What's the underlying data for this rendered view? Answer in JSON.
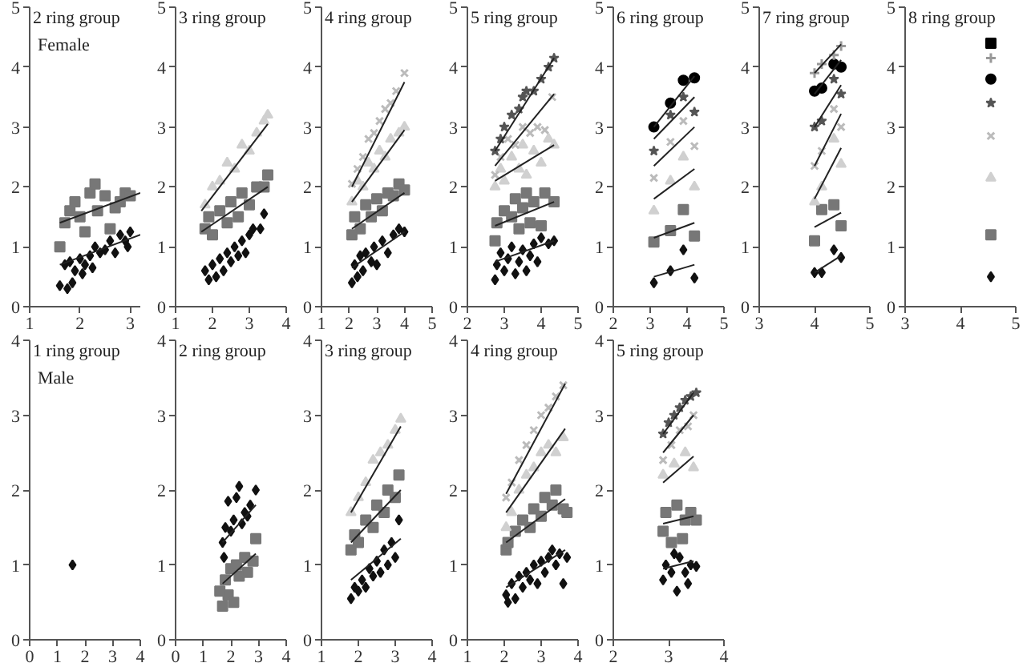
{
  "chart_data": [
    {
      "type": "scatter",
      "title": "2 ring group",
      "annotations": [
        "Female"
      ],
      "xlim": [
        1,
        3.2
      ],
      "ylim": [
        0,
        5
      ],
      "xticks": [
        1,
        2,
        3
      ],
      "yticks": [
        0,
        1,
        2,
        3,
        4,
        5
      ],
      "series": [
        {
          "type": "scatter",
          "marker": "diamond",
          "color": "#111111",
          "x": [
            1.6,
            1.7,
            1.75,
            1.8,
            1.85,
            1.9,
            2.0,
            2.05,
            2.1,
            2.2,
            2.25,
            2.3,
            2.4,
            2.5,
            2.6,
            2.7,
            2.8,
            2.9,
            2.95,
            3.0
          ],
          "values": [
            0.35,
            0.7,
            0.3,
            0.75,
            0.4,
            0.6,
            0.8,
            0.55,
            0.7,
            0.85,
            0.65,
            1.0,
            0.9,
            0.95,
            1.1,
            0.9,
            1.2,
            1.1,
            1.0,
            1.25
          ]
        },
        {
          "type": "scatter",
          "marker": "square",
          "color": "#777777",
          "x": [
            1.6,
            1.7,
            1.8,
            1.9,
            2.0,
            2.1,
            2.2,
            2.3,
            2.35,
            2.5,
            2.6,
            2.7,
            2.8,
            2.9,
            3.0
          ],
          "values": [
            1.0,
            1.4,
            1.6,
            1.75,
            1.5,
            1.25,
            1.9,
            2.05,
            1.6,
            1.85,
            1.3,
            1.65,
            1.75,
            1.9,
            1.85
          ]
        },
        {
          "type": "line",
          "color": "#222222",
          "x": [
            1.6,
            3.2
          ],
          "values": [
            1.4,
            1.9
          ]
        },
        {
          "type": "line",
          "color": "#222222",
          "x": [
            1.6,
            3.2
          ],
          "values": [
            0.7,
            1.2
          ]
        }
      ]
    },
    {
      "type": "scatter",
      "title": "3 ring group",
      "xlim": [
        1,
        4
      ],
      "ylim": [
        0,
        5
      ],
      "xticks": [
        1,
        2,
        3,
        4
      ],
      "yticks": [
        0,
        1,
        2,
        3,
        4,
        5
      ],
      "series": [
        {
          "type": "scatter",
          "marker": "diamond",
          "color": "#111111",
          "x": [
            1.8,
            1.9,
            2.0,
            2.1,
            2.2,
            2.3,
            2.4,
            2.5,
            2.6,
            2.7,
            2.8,
            2.9,
            3.0,
            3.1,
            3.3,
            3.4
          ],
          "values": [
            0.6,
            0.45,
            0.7,
            0.5,
            0.8,
            0.6,
            0.9,
            0.75,
            1.0,
            0.85,
            1.1,
            0.9,
            1.2,
            1.3,
            1.3,
            1.55
          ]
        },
        {
          "type": "scatter",
          "marker": "square",
          "color": "#777777",
          "x": [
            1.8,
            1.9,
            2.0,
            2.2,
            2.4,
            2.5,
            2.7,
            2.8,
            3.0,
            3.2,
            3.4,
            3.5
          ],
          "values": [
            1.3,
            1.5,
            1.2,
            1.6,
            1.4,
            1.75,
            1.5,
            1.9,
            1.7,
            2.0,
            2.0,
            2.2
          ]
        },
        {
          "type": "scatter",
          "marker": "triangle",
          "color": "#d0d0d0",
          "x": [
            1.8,
            2.0,
            2.2,
            2.4,
            2.6,
            2.8,
            3.0,
            3.2,
            3.4,
            3.5
          ],
          "values": [
            1.7,
            2.0,
            2.1,
            2.4,
            2.3,
            2.7,
            2.6,
            2.9,
            3.1,
            3.2
          ]
        },
        {
          "type": "line",
          "color": "#222222",
          "x": [
            1.7,
            3.5
          ],
          "values": [
            1.6,
            3.05
          ]
        },
        {
          "type": "line",
          "color": "#222222",
          "x": [
            1.7,
            3.5
          ],
          "values": [
            1.25,
            2.0
          ]
        }
      ]
    },
    {
      "type": "scatter",
      "title": "4 ring group",
      "xlim": [
        1,
        5
      ],
      "ylim": [
        0,
        5
      ],
      "xticks": [
        1,
        2,
        3,
        4,
        5
      ],
      "yticks": [
        0,
        1,
        2,
        3,
        4,
        5
      ],
      "series": [
        {
          "type": "scatter",
          "marker": "diamond",
          "color": "#111111",
          "x": [
            2.1,
            2.2,
            2.3,
            2.4,
            2.5,
            2.6,
            2.8,
            2.9,
            3.0,
            3.2,
            3.4,
            3.6,
            3.8,
            4.0
          ],
          "values": [
            0.4,
            0.7,
            0.5,
            0.85,
            0.6,
            0.9,
            0.75,
            1.0,
            0.7,
            1.1,
            0.9,
            1.2,
            1.3,
            1.25
          ]
        },
        {
          "type": "scatter",
          "marker": "square",
          "color": "#777777",
          "x": [
            2.1,
            2.2,
            2.4,
            2.6,
            2.8,
            3.0,
            3.2,
            3.4,
            3.6,
            3.8,
            4.0
          ],
          "values": [
            1.2,
            1.5,
            1.3,
            1.7,
            1.5,
            1.8,
            1.6,
            1.9,
            1.85,
            2.05,
            1.95
          ]
        },
        {
          "type": "scatter",
          "marker": "triangle",
          "color": "#d0d0d0",
          "x": [
            2.1,
            2.3,
            2.5,
            2.7,
            2.9,
            3.1,
            3.3,
            3.5,
            3.8,
            4.0
          ],
          "values": [
            1.75,
            2.1,
            2.0,
            2.4,
            2.3,
            2.6,
            2.5,
            2.8,
            2.9,
            3.0
          ]
        },
        {
          "type": "scatter",
          "marker": "cross",
          "color": "#bbbbbb",
          "x": [
            2.1,
            2.3,
            2.5,
            2.7,
            2.9,
            3.1,
            3.3,
            3.5,
            3.7,
            4.0
          ],
          "values": [
            2.05,
            2.3,
            2.5,
            2.8,
            2.9,
            3.1,
            3.3,
            3.4,
            3.6,
            3.9
          ]
        },
        {
          "type": "line",
          "color": "#222222",
          "x": [
            2.1,
            4.0
          ],
          "values": [
            2.0,
            3.75
          ]
        },
        {
          "type": "line",
          "color": "#222222",
          "x": [
            2.1,
            4.0
          ],
          "values": [
            1.75,
            2.95
          ]
        },
        {
          "type": "line",
          "color": "#222222",
          "x": [
            2.1,
            4.0
          ],
          "values": [
            1.3,
            1.9
          ]
        },
        {
          "type": "line",
          "color": "#222222",
          "x": [
            2.1,
            4.0
          ],
          "values": [
            0.65,
            1.25
          ]
        }
      ]
    },
    {
      "type": "scatter",
      "title": "5 ring group",
      "xlim": [
        2,
        5
      ],
      "ylim": [
        0,
        5
      ],
      "xticks": [
        2,
        3,
        4,
        5
      ],
      "yticks": [
        0,
        1,
        2,
        3,
        4,
        5
      ],
      "series": [
        {
          "type": "scatter",
          "marker": "diamond",
          "color": "#111111",
          "x": [
            2.75,
            2.8,
            2.9,
            3.0,
            3.1,
            3.2,
            3.3,
            3.4,
            3.5,
            3.6,
            3.7,
            3.8,
            3.9,
            4.0,
            4.2,
            4.35
          ],
          "values": [
            0.45,
            0.7,
            0.9,
            0.6,
            0.8,
            1.0,
            0.55,
            0.75,
            0.95,
            0.6,
            0.85,
            1.05,
            0.75,
            1.15,
            1.05,
            1.1
          ]
        },
        {
          "type": "scatter",
          "marker": "square",
          "color": "#777777",
          "x": [
            2.75,
            2.8,
            3.0,
            3.2,
            3.3,
            3.4,
            3.5,
            3.6,
            3.7,
            3.8,
            4.0,
            4.1,
            4.35
          ],
          "values": [
            1.1,
            1.4,
            1.6,
            1.5,
            1.8,
            1.3,
            1.65,
            1.9,
            1.4,
            1.75,
            1.35,
            1.9,
            1.75
          ]
        },
        {
          "type": "scatter",
          "marker": "triangle",
          "color": "#d0d0d0",
          "x": [
            2.75,
            2.9,
            3.0,
            3.2,
            3.4,
            3.5,
            3.6,
            3.8,
            4.0,
            4.2,
            4.35
          ],
          "values": [
            2.0,
            2.3,
            2.1,
            2.5,
            2.3,
            2.7,
            2.2,
            2.6,
            2.4,
            2.8,
            2.7
          ]
        },
        {
          "type": "scatter",
          "marker": "cross",
          "color": "#bbbbbb",
          "x": [
            2.75,
            2.9,
            3.1,
            3.3,
            3.5,
            3.7,
            3.9,
            4.1,
            4.3
          ],
          "values": [
            2.2,
            2.5,
            2.8,
            2.7,
            3.0,
            2.9,
            3.0,
            2.95,
            3.5
          ]
        },
        {
          "type": "scatter",
          "marker": "star",
          "color": "#555555",
          "x": [
            2.75,
            2.9,
            3.0,
            3.2,
            3.4,
            3.5,
            3.6,
            3.8,
            4.0,
            4.2,
            4.35
          ],
          "values": [
            2.6,
            2.8,
            3.0,
            3.2,
            3.3,
            3.5,
            3.6,
            3.6,
            3.8,
            4.0,
            4.15
          ]
        },
        {
          "type": "line",
          "color": "#222222",
          "x": [
            2.75,
            4.35
          ],
          "values": [
            2.6,
            4.15
          ]
        },
        {
          "type": "line",
          "color": "#222222",
          "x": [
            2.75,
            4.35
          ],
          "values": [
            2.35,
            3.55
          ]
        },
        {
          "type": "line",
          "color": "#222222",
          "x": [
            2.75,
            4.35
          ],
          "values": [
            2.1,
            2.7
          ]
        },
        {
          "type": "line",
          "color": "#222222",
          "x": [
            2.75,
            4.35
          ],
          "values": [
            1.35,
            1.75
          ]
        },
        {
          "type": "line",
          "color": "#222222",
          "x": [
            2.75,
            4.35
          ],
          "values": [
            0.75,
            1.1
          ]
        }
      ]
    },
    {
      "type": "scatter",
      "title": "6 ring group",
      "xlim": [
        2,
        5
      ],
      "ylim": [
        0,
        5
      ],
      "xticks": [
        2,
        3,
        4,
        5
      ],
      "yticks": [
        0,
        1,
        2,
        3,
        4,
        5
      ],
      "series": [
        {
          "type": "scatter",
          "marker": "diamond",
          "color": "#111111",
          "x": [
            3.1,
            3.55,
            3.9,
            4.2
          ],
          "values": [
            0.4,
            0.6,
            0.95,
            0.48
          ]
        },
        {
          "type": "scatter",
          "marker": "square",
          "color": "#777777",
          "x": [
            3.1,
            3.55,
            3.9,
            4.2
          ],
          "values": [
            1.08,
            1.27,
            1.62,
            1.18
          ]
        },
        {
          "type": "scatter",
          "marker": "triangle",
          "color": "#d0d0d0",
          "x": [
            3.1,
            3.55,
            3.9,
            4.2
          ],
          "values": [
            1.6,
            2.1,
            2.5,
            2.0
          ]
        },
        {
          "type": "scatter",
          "marker": "cross",
          "color": "#bbbbbb",
          "x": [
            3.1,
            3.55,
            3.9,
            4.2
          ],
          "values": [
            2.15,
            2.75,
            3.1,
            2.68
          ]
        },
        {
          "type": "scatter",
          "marker": "star",
          "color": "#555555",
          "x": [
            3.1,
            3.55,
            3.9,
            4.2
          ],
          "values": [
            2.6,
            3.2,
            3.5,
            3.25
          ]
        },
        {
          "type": "scatter",
          "marker": "circle",
          "color": "#000000",
          "x": [
            3.1,
            3.55,
            3.9,
            4.2
          ],
          "values": [
            3.0,
            3.4,
            3.78,
            3.82
          ]
        },
        {
          "type": "line",
          "color": "#222222",
          "x": [
            3.1,
            4.2
          ],
          "values": [
            3.0,
            3.85
          ]
        },
        {
          "type": "line",
          "color": "#222222",
          "x": [
            3.1,
            4.2
          ],
          "values": [
            2.8,
            3.5
          ]
        },
        {
          "type": "line",
          "color": "#222222",
          "x": [
            3.1,
            4.2
          ],
          "values": [
            2.35,
            3.0
          ]
        },
        {
          "type": "line",
          "color": "#222222",
          "x": [
            3.1,
            4.2
          ],
          "values": [
            1.8,
            2.3
          ]
        },
        {
          "type": "line",
          "color": "#222222",
          "x": [
            3.1,
            4.2
          ],
          "values": [
            1.15,
            1.4
          ]
        },
        {
          "type": "line",
          "color": "#222222",
          "x": [
            3.1,
            4.2
          ],
          "values": [
            0.5,
            0.7
          ]
        }
      ]
    },
    {
      "type": "scatter",
      "title": "7 ring group",
      "xlim": [
        3,
        5
      ],
      "ylim": [
        0,
        5
      ],
      "xticks": [
        3,
        4,
        5
      ],
      "yticks": [
        0,
        1,
        2,
        3,
        4,
        5
      ],
      "series": [
        {
          "type": "scatter",
          "marker": "diamond",
          "color": "#111111",
          "x": [
            4.0,
            4.13,
            4.35,
            4.48
          ],
          "values": [
            0.57,
            0.57,
            0.95,
            0.82
          ]
        },
        {
          "type": "scatter",
          "marker": "square",
          "color": "#777777",
          "x": [
            4.0,
            4.13,
            4.35,
            4.48
          ],
          "values": [
            1.1,
            1.62,
            1.7,
            1.35
          ]
        },
        {
          "type": "scatter",
          "marker": "triangle",
          "color": "#d0d0d0",
          "x": [
            4.0,
            4.13,
            4.35,
            4.48
          ],
          "values": [
            1.75,
            2.0,
            2.8,
            2.38
          ]
        },
        {
          "type": "scatter",
          "marker": "cross",
          "color": "#bbbbbb",
          "x": [
            4.0,
            4.13,
            4.35,
            4.48
          ],
          "values": [
            2.35,
            2.6,
            3.3,
            3.0
          ]
        },
        {
          "type": "scatter",
          "marker": "star",
          "color": "#555555",
          "x": [
            4.0,
            4.13,
            4.35,
            4.48
          ],
          "values": [
            3.0,
            3.1,
            3.8,
            3.55
          ]
        },
        {
          "type": "scatter",
          "marker": "circle",
          "color": "#000000",
          "x": [
            4.0,
            4.13,
            4.35,
            4.48
          ],
          "values": [
            3.6,
            3.65,
            4.05,
            4.0
          ]
        },
        {
          "type": "scatter",
          "marker": "plus",
          "color": "#999999",
          "x": [
            4.0,
            4.13,
            4.35,
            4.48
          ],
          "values": [
            3.9,
            4.05,
            4.2,
            4.35
          ]
        },
        {
          "type": "line",
          "color": "#222222",
          "x": [
            4.0,
            4.48
          ],
          "values": [
            0.57,
            0.85
          ]
        },
        {
          "type": "line",
          "color": "#222222",
          "x": [
            4.0,
            4.48
          ],
          "values": [
            1.33,
            1.57
          ]
        },
        {
          "type": "line",
          "color": "#222222",
          "x": [
            4.0,
            4.48
          ],
          "values": [
            1.8,
            2.65
          ]
        },
        {
          "type": "line",
          "color": "#222222",
          "x": [
            4.0,
            4.48
          ],
          "values": [
            2.35,
            3.22
          ]
        },
        {
          "type": "line",
          "color": "#222222",
          "x": [
            4.0,
            4.48
          ],
          "values": [
            3.0,
            3.7
          ]
        },
        {
          "type": "line",
          "color": "#222222",
          "x": [
            4.0,
            4.48
          ],
          "values": [
            3.55,
            4.12
          ]
        },
        {
          "type": "line",
          "color": "#222222",
          "x": [
            4.0,
            4.48
          ],
          "values": [
            3.9,
            4.38
          ]
        }
      ]
    },
    {
      "type": "scatter",
      "title": "8 ring group",
      "xlim": [
        3,
        5
      ],
      "ylim": [
        0,
        5
      ],
      "xticks": [
        3,
        4,
        5
      ],
      "yticks": [
        0,
        1,
        2,
        3,
        4,
        5
      ],
      "series": [
        {
          "type": "scatter",
          "marker": "diamond",
          "color": "#111111",
          "x": [
            4.55
          ],
          "values": [
            0.5
          ]
        },
        {
          "type": "scatter",
          "marker": "square",
          "color": "#777777",
          "x": [
            4.55
          ],
          "values": [
            1.2
          ]
        },
        {
          "type": "scatter",
          "marker": "triangle",
          "color": "#d0d0d0",
          "x": [
            4.55
          ],
          "values": [
            2.15
          ]
        },
        {
          "type": "scatter",
          "marker": "cross",
          "color": "#bbbbbb",
          "x": [
            4.55
          ],
          "values": [
            2.85
          ]
        },
        {
          "type": "scatter",
          "marker": "star",
          "color": "#555555",
          "x": [
            4.55
          ],
          "values": [
            3.4
          ]
        },
        {
          "type": "scatter",
          "marker": "circle",
          "color": "#000000",
          "x": [
            4.55
          ],
          "values": [
            3.8
          ]
        },
        {
          "type": "scatter",
          "marker": "plus",
          "color": "#999999",
          "x": [
            4.55
          ],
          "values": [
            4.15
          ]
        },
        {
          "type": "scatter",
          "marker": "square",
          "color": "#000000",
          "x": [
            4.55
          ],
          "values": [
            4.4
          ]
        }
      ]
    },
    {
      "type": "scatter",
      "title": "1 ring group",
      "annotations": [
        "Male"
      ],
      "xlim": [
        0,
        4
      ],
      "ylim": [
        0,
        4
      ],
      "xticks": [
        0,
        1,
        2,
        3,
        4
      ],
      "yticks": [
        0,
        1,
        2,
        3,
        4
      ],
      "series": [
        {
          "type": "scatter",
          "marker": "diamond",
          "color": "#111111",
          "x": [
            1.55
          ],
          "values": [
            1.0
          ]
        }
      ]
    },
    {
      "type": "scatter",
      "title": "2 ring group",
      "xlim": [
        0,
        4
      ],
      "ylim": [
        0,
        4
      ],
      "xticks": [
        0,
        1,
        2,
        3,
        4
      ],
      "yticks": [
        0,
        1,
        2,
        3,
        4
      ],
      "series": [
        {
          "type": "scatter",
          "marker": "diamond",
          "color": "#111111",
          "x": [
            1.7,
            1.75,
            1.8,
            1.9,
            2.0,
            2.1,
            2.2,
            2.3,
            2.4,
            2.5,
            2.6,
            2.7,
            2.9
          ],
          "values": [
            1.3,
            1.1,
            1.5,
            1.85,
            1.45,
            1.6,
            1.9,
            2.05,
            1.55,
            1.7,
            1.65,
            1.8,
            2.0
          ]
        },
        {
          "type": "scatter",
          "marker": "square",
          "color": "#777777",
          "x": [
            1.6,
            1.7,
            1.8,
            1.9,
            2.0,
            2.1,
            2.2,
            2.3,
            2.5,
            2.6,
            2.8,
            2.9
          ],
          "values": [
            0.65,
            0.45,
            0.8,
            0.6,
            0.95,
            0.5,
            1.0,
            0.85,
            1.1,
            0.9,
            1.05,
            1.35
          ]
        },
        {
          "type": "line",
          "color": "#222222",
          "x": [
            1.7,
            2.9
          ],
          "values": [
            1.3,
            1.8
          ]
        },
        {
          "type": "line",
          "color": "#222222",
          "x": [
            1.7,
            2.9
          ],
          "values": [
            0.75,
            1.15
          ]
        }
      ]
    },
    {
      "type": "scatter",
      "title": "3 ring group",
      "xlim": [
        1,
        4
      ],
      "ylim": [
        0,
        4
      ],
      "xticks": [
        1,
        2,
        3,
        4
      ],
      "yticks": [
        0,
        1,
        2,
        3,
        4
      ],
      "series": [
        {
          "type": "scatter",
          "marker": "diamond",
          "color": "#111111",
          "x": [
            1.8,
            1.9,
            2.0,
            2.1,
            2.2,
            2.3,
            2.4,
            2.5,
            2.6,
            2.7,
            2.8,
            2.9,
            3.0,
            3.1
          ],
          "values": [
            0.55,
            0.7,
            0.65,
            0.8,
            0.7,
            0.95,
            0.85,
            1.05,
            0.9,
            1.2,
            1.0,
            1.3,
            1.1,
            1.6
          ]
        },
        {
          "type": "scatter",
          "marker": "square",
          "color": "#777777",
          "x": [
            1.8,
            1.9,
            2.0,
            2.2,
            2.4,
            2.5,
            2.7,
            2.8,
            3.0,
            3.1
          ],
          "values": [
            1.2,
            1.4,
            1.3,
            1.6,
            1.5,
            1.8,
            1.7,
            2.0,
            1.9,
            2.2
          ]
        },
        {
          "type": "scatter",
          "marker": "triangle",
          "color": "#d0d0d0",
          "x": [
            1.8,
            2.0,
            2.2,
            2.4,
            2.6,
            2.8,
            3.0,
            3.15
          ],
          "values": [
            1.7,
            1.9,
            2.1,
            2.4,
            2.5,
            2.6,
            2.8,
            2.95
          ]
        },
        {
          "type": "line",
          "color": "#222222",
          "x": [
            1.8,
            3.15
          ],
          "values": [
            1.7,
            2.85
          ]
        },
        {
          "type": "line",
          "color": "#222222",
          "x": [
            1.8,
            3.15
          ],
          "values": [
            1.3,
            2.0
          ]
        },
        {
          "type": "line",
          "color": "#222222",
          "x": [
            1.8,
            3.15
          ],
          "values": [
            0.8,
            1.35
          ]
        }
      ]
    },
    {
      "type": "scatter",
      "title": "4 ring group",
      "xlim": [
        1,
        4
      ],
      "ylim": [
        0,
        4
      ],
      "xticks": [
        1,
        2,
        3,
        4
      ],
      "yticks": [
        0,
        1,
        2,
        3,
        4
      ],
      "series": [
        {
          "type": "scatter",
          "marker": "diamond",
          "color": "#111111",
          "x": [
            2.05,
            2.1,
            2.2,
            2.3,
            2.4,
            2.5,
            2.6,
            2.7,
            2.8,
            2.9,
            3.0,
            3.1,
            3.2,
            3.3,
            3.4,
            3.5,
            3.6,
            3.7
          ],
          "values": [
            0.6,
            0.5,
            0.75,
            0.55,
            0.85,
            0.7,
            0.9,
            0.8,
            1.0,
            0.75,
            1.05,
            0.9,
            1.1,
            1.2,
            1.0,
            1.15,
            0.75,
            1.1
          ]
        },
        {
          "type": "scatter",
          "marker": "square",
          "color": "#777777",
          "x": [
            2.05,
            2.1,
            2.3,
            2.5,
            2.7,
            2.8,
            3.0,
            3.1,
            3.3,
            3.4,
            3.6,
            3.7
          ],
          "values": [
            1.2,
            1.3,
            1.45,
            1.6,
            1.5,
            1.75,
            1.65,
            1.9,
            1.8,
            2.0,
            1.75,
            1.7
          ]
        },
        {
          "type": "scatter",
          "marker": "triangle",
          "color": "#d0d0d0",
          "x": [
            2.05,
            2.2,
            2.4,
            2.6,
            2.8,
            3.0,
            3.2,
            3.4,
            3.6
          ],
          "values": [
            1.5,
            1.7,
            2.0,
            2.2,
            2.3,
            2.5,
            2.6,
            2.5,
            2.7
          ]
        },
        {
          "type": "scatter",
          "marker": "cross",
          "color": "#bbbbbb",
          "x": [
            2.05,
            2.2,
            2.4,
            2.6,
            2.8,
            3.0,
            3.2,
            3.4,
            3.6
          ],
          "values": [
            1.9,
            2.1,
            2.4,
            2.6,
            2.8,
            3.0,
            3.1,
            3.25,
            3.4
          ]
        },
        {
          "type": "line",
          "color": "#222222",
          "x": [
            2.05,
            3.65
          ],
          "values": [
            1.95,
            3.42
          ]
        },
        {
          "type": "line",
          "color": "#222222",
          "x": [
            2.05,
            3.65
          ],
          "values": [
            1.7,
            2.82
          ]
        },
        {
          "type": "line",
          "color": "#222222",
          "x": [
            2.05,
            3.65
          ],
          "values": [
            1.3,
            1.88
          ]
        },
        {
          "type": "line",
          "color": "#222222",
          "x": [
            2.05,
            3.65
          ],
          "values": [
            0.7,
            1.2
          ]
        }
      ]
    },
    {
      "type": "scatter",
      "title": "5 ring group",
      "xlim": [
        2,
        4
      ],
      "ylim": [
        0,
        4
      ],
      "xticks": [
        2,
        3,
        4
      ],
      "yticks": [
        0,
        1,
        2,
        3,
        4
      ],
      "series": [
        {
          "type": "scatter",
          "marker": "diamond",
          "color": "#111111",
          "x": [
            2.9,
            2.95,
            3.05,
            3.1,
            3.15,
            3.2,
            3.3,
            3.35,
            3.4,
            3.5
          ],
          "values": [
            0.8,
            1.0,
            0.9,
            1.15,
            0.65,
            1.1,
            0.9,
            0.75,
            1.0,
            0.98
          ]
        },
        {
          "type": "scatter",
          "marker": "square",
          "color": "#777777",
          "x": [
            2.9,
            2.95,
            3.05,
            3.15,
            3.25,
            3.3,
            3.4,
            3.5
          ],
          "values": [
            1.45,
            1.7,
            1.3,
            1.8,
            1.35,
            1.6,
            1.7,
            1.6
          ]
        },
        {
          "type": "scatter",
          "marker": "triangle",
          "color": "#d0d0d0",
          "x": [
            2.9,
            3.1,
            3.3,
            3.45
          ],
          "values": [
            2.2,
            2.35,
            2.5,
            2.3
          ]
        },
        {
          "type": "scatter",
          "marker": "cross",
          "color": "#bbbbbb",
          "x": [
            2.9,
            3.05,
            3.2,
            3.35,
            3.45
          ],
          "values": [
            2.4,
            2.6,
            2.8,
            2.85,
            3.0
          ]
        },
        {
          "type": "scatter",
          "marker": "star",
          "color": "#555555",
          "x": [
            2.9,
            3.0,
            3.1,
            3.2,
            3.3,
            3.4,
            3.5
          ],
          "values": [
            2.75,
            2.9,
            3.0,
            3.1,
            3.2,
            3.25,
            3.3
          ]
        },
        {
          "type": "line",
          "color": "#222222",
          "x": [
            2.9,
            3.45
          ],
          "values": [
            2.75,
            3.3
          ]
        },
        {
          "type": "line",
          "color": "#222222",
          "x": [
            2.9,
            3.45
          ],
          "values": [
            2.5,
            3.0
          ]
        },
        {
          "type": "line",
          "color": "#222222",
          "x": [
            2.9,
            3.45
          ],
          "values": [
            2.1,
            2.45
          ]
        },
        {
          "type": "line",
          "color": "#222222",
          "x": [
            2.9,
            3.45
          ],
          "values": [
            1.55,
            1.65
          ]
        },
        {
          "type": "line",
          "color": "#222222",
          "x": [
            2.9,
            3.45
          ],
          "values": [
            0.95,
            1.05
          ]
        }
      ]
    }
  ]
}
